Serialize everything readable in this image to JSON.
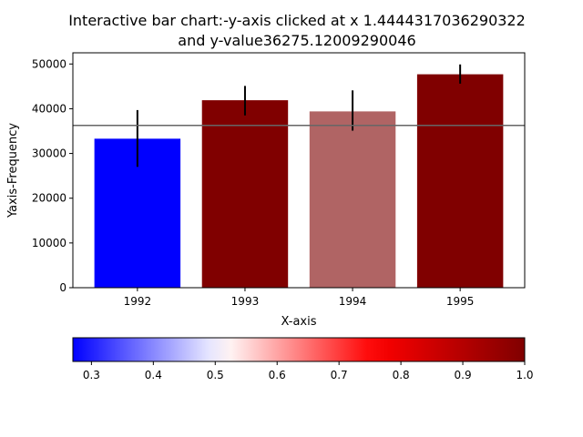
{
  "chart_data": {
    "type": "bar",
    "title_line1": "Interactive bar chart:-y-axis clicked at x 1.4444317036290322",
    "title_line2": "and y-value36275.12009290046",
    "xlabel": "X-axis",
    "ylabel": "Yaxis-Frequency",
    "categories": [
      "1992",
      "1993",
      "1994",
      "1995"
    ],
    "values": [
      33300,
      41900,
      39400,
      47700
    ],
    "errors_low": [
      6300,
      3400,
      4300,
      2100
    ],
    "errors_high": [
      6400,
      3200,
      4700,
      2200
    ],
    "bar_colors": [
      "#0000ff",
      "#800000",
      "#b06464",
      "#800000"
    ],
    "ylim": [
      0,
      52500
    ],
    "yticks": [
      0,
      10000,
      20000,
      30000,
      40000,
      50000
    ],
    "ytick_labels": [
      "0",
      "10000",
      "20000",
      "30000",
      "40000",
      "50000"
    ],
    "hline_y": 36275.12009290046,
    "hline_color": "#666666",
    "colorbar": {
      "cmap": "seismic",
      "range": [
        0.27,
        1.0
      ],
      "ticks": [
        0.3,
        0.4,
        0.5,
        0.6,
        0.7,
        0.8,
        0.9,
        1.0
      ],
      "tick_labels": [
        "0.3",
        "0.4",
        "0.5",
        "0.6",
        "0.7",
        "0.8",
        "0.9",
        "1.0"
      ]
    }
  }
}
